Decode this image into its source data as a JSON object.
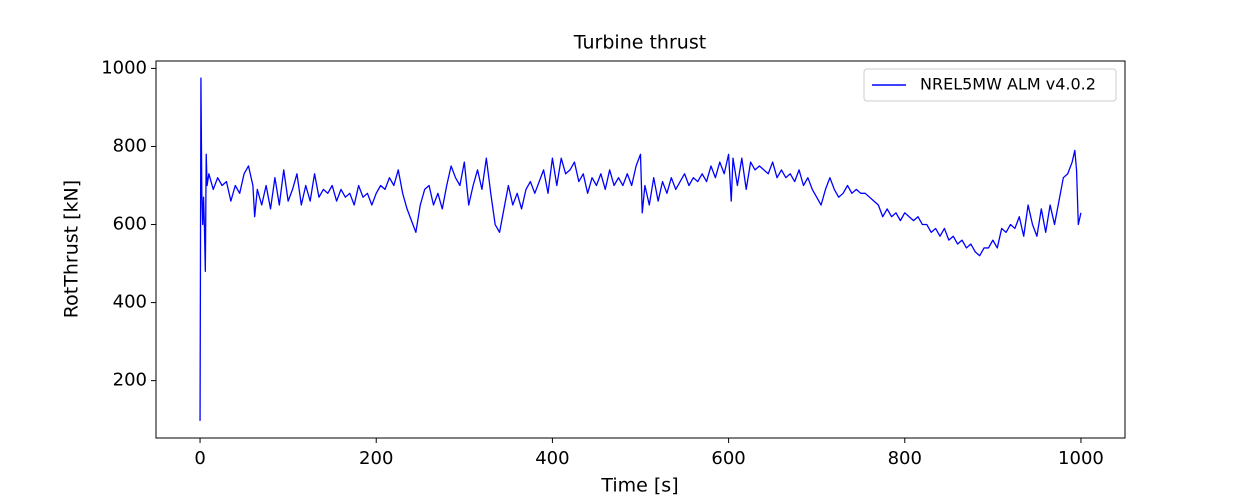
{
  "chart_data": {
    "type": "line",
    "title": "Turbine thrust",
    "x_label": "Time [s]",
    "y_label": "RotThrust [kN]",
    "x": [
      0,
      1,
      2,
      3,
      4,
      5,
      6,
      7,
      8,
      10,
      15,
      20,
      25,
      30,
      35,
      40,
      45,
      50,
      55,
      60,
      62,
      65,
      70,
      75,
      80,
      85,
      90,
      95,
      100,
      105,
      110,
      115,
      120,
      125,
      130,
      135,
      140,
      145,
      150,
      155,
      160,
      165,
      170,
      175,
      180,
      185,
      190,
      195,
      200,
      205,
      210,
      215,
      220,
      225,
      230,
      235,
      240,
      245,
      250,
      255,
      260,
      265,
      270,
      275,
      280,
      285,
      290,
      295,
      300,
      305,
      310,
      315,
      320,
      325,
      330,
      335,
      340,
      345,
      350,
      355,
      360,
      365,
      370,
      375,
      380,
      385,
      390,
      395,
      400,
      405,
      410,
      415,
      420,
      425,
      430,
      435,
      440,
      445,
      450,
      455,
      460,
      465,
      470,
      475,
      480,
      485,
      490,
      495,
      500,
      502,
      505,
      510,
      515,
      520,
      525,
      530,
      535,
      540,
      545,
      550,
      555,
      560,
      565,
      570,
      575,
      580,
      585,
      590,
      595,
      600,
      603,
      605,
      610,
      615,
      620,
      625,
      630,
      635,
      640,
      645,
      650,
      655,
      660,
      665,
      670,
      675,
      680,
      685,
      690,
      695,
      700,
      705,
      710,
      715,
      720,
      725,
      730,
      735,
      740,
      745,
      750,
      755,
      760,
      765,
      770,
      775,
      780,
      785,
      790,
      795,
      800,
      805,
      810,
      815,
      820,
      825,
      830,
      835,
      840,
      845,
      850,
      855,
      860,
      865,
      870,
      875,
      880,
      885,
      890,
      895,
      900,
      905,
      910,
      915,
      920,
      925,
      930,
      935,
      940,
      945,
      950,
      955,
      960,
      965,
      970,
      975,
      980,
      985,
      990,
      993,
      995,
      997,
      1000
    ],
    "series": [
      {
        "name": "NREL5MW ALM v4.0.2",
        "color": "#0000ff",
        "values": [
          97,
          975,
          680,
          600,
          670,
          590,
          480,
          780,
          700,
          730,
          690,
          720,
          700,
          710,
          660,
          700,
          680,
          730,
          750,
          700,
          620,
          690,
          650,
          700,
          640,
          720,
          650,
          740,
          660,
          690,
          730,
          650,
          700,
          660,
          730,
          670,
          690,
          680,
          700,
          660,
          690,
          670,
          680,
          650,
          700,
          670,
          680,
          650,
          680,
          700,
          690,
          720,
          700,
          740,
          680,
          640,
          610,
          580,
          650,
          690,
          700,
          650,
          680,
          640,
          700,
          750,
          720,
          700,
          760,
          650,
          700,
          740,
          690,
          770,
          680,
          600,
          580,
          640,
          700,
          650,
          680,
          640,
          690,
          710,
          680,
          710,
          740,
          680,
          770,
          700,
          770,
          730,
          740,
          760,
          710,
          730,
          680,
          720,
          700,
          730,
          690,
          740,
          700,
          720,
          700,
          730,
          700,
          750,
          780,
          630,
          700,
          650,
          720,
          660,
          710,
          680,
          720,
          690,
          710,
          730,
          700,
          720,
          710,
          730,
          710,
          750,
          720,
          760,
          730,
          780,
          660,
          770,
          700,
          770,
          690,
          760,
          740,
          750,
          740,
          730,
          760,
          720,
          740,
          720,
          730,
          710,
          740,
          700,
          720,
          690,
          670,
          650,
          690,
          720,
          690,
          670,
          680,
          700,
          680,
          690,
          680,
          680,
          670,
          660,
          650,
          620,
          640,
          620,
          630,
          610,
          630,
          620,
          610,
          620,
          600,
          600,
          580,
          590,
          570,
          590,
          560,
          570,
          550,
          560,
          540,
          550,
          530,
          520,
          540,
          540,
          560,
          540,
          590,
          580,
          600,
          590,
          620,
          570,
          650,
          600,
          570,
          640,
          580,
          650,
          600,
          660,
          720,
          730,
          760,
          790,
          740,
          600,
          630
        ]
      }
    ],
    "xlim": [
      -50,
      1050
    ],
    "ylim": [
      53,
      1019
    ],
    "xticks": [
      0,
      200,
      400,
      600,
      800,
      1000
    ],
    "yticks": [
      200,
      400,
      600,
      800,
      1000
    ],
    "legend": "upper right"
  }
}
